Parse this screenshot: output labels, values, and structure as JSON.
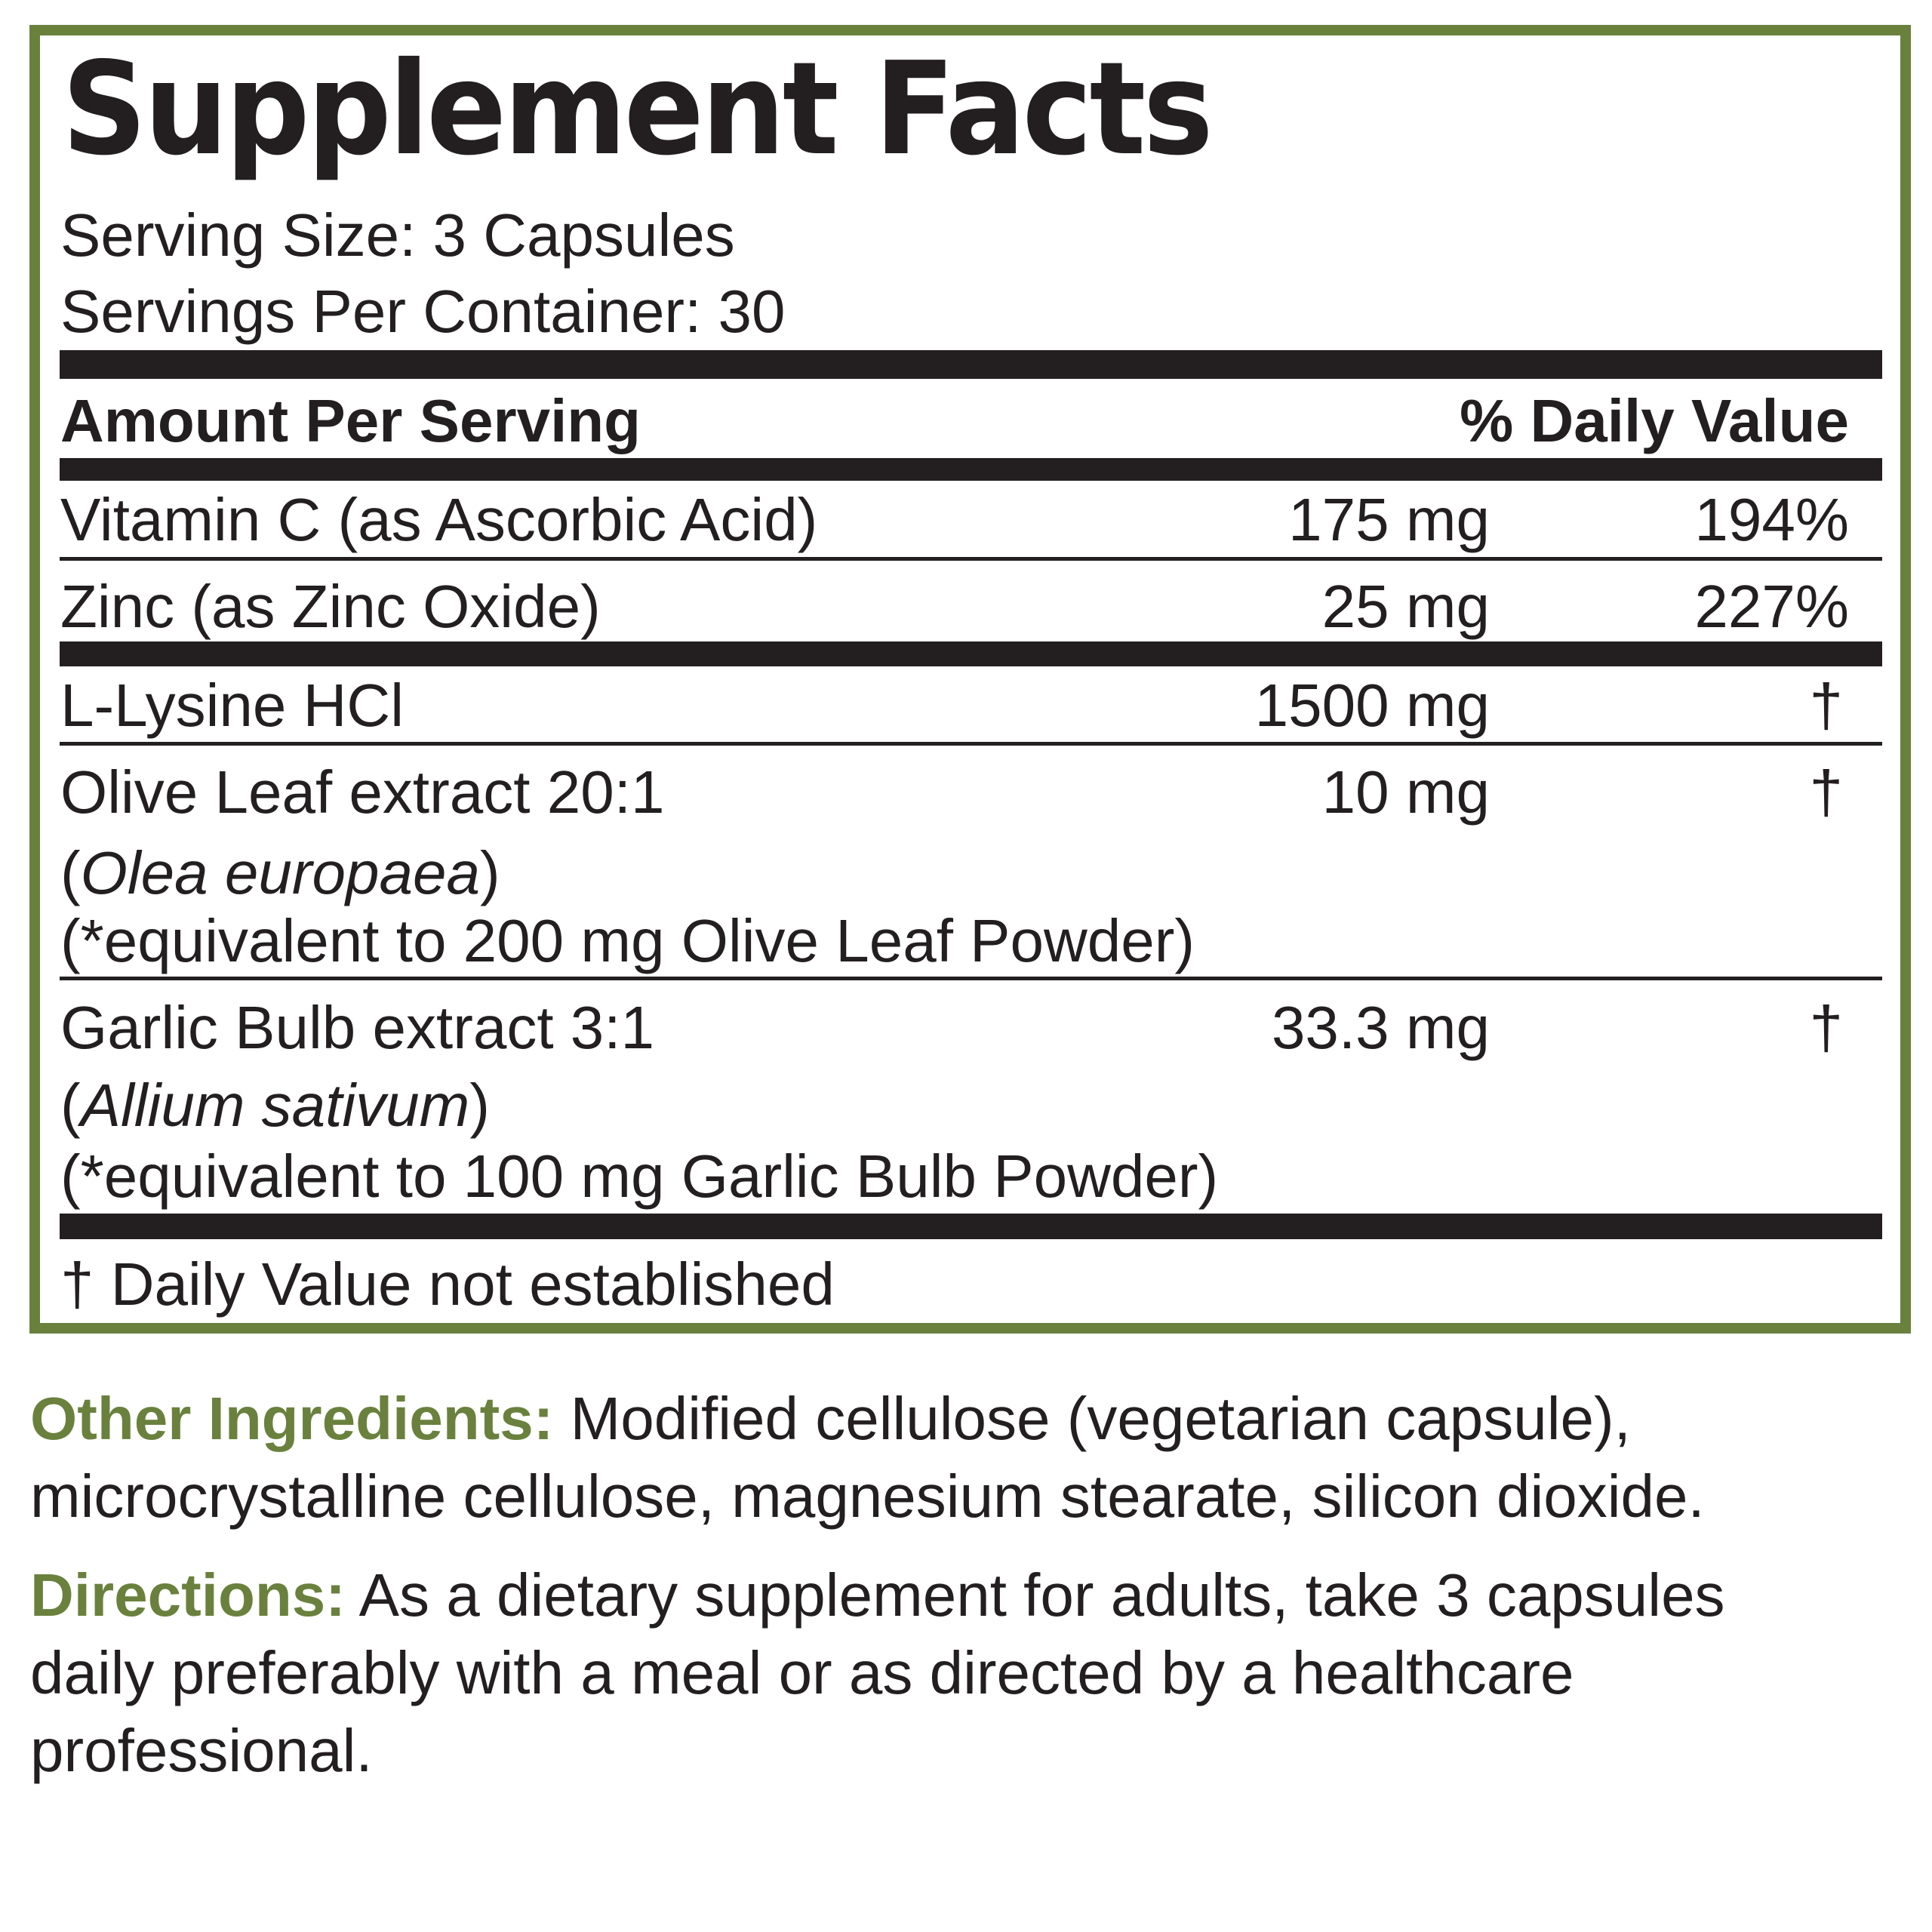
{
  "title": "Supplement Facts",
  "serving_size": "Serving Size: 3 Capsules",
  "servings_per_container": "Servings Per Container: 30",
  "header": {
    "amount": "Amount Per Serving",
    "dv": "% Daily Value"
  },
  "rows": [
    {
      "name": "Vitamin C (as Ascorbic Acid)",
      "amount": "175 mg",
      "dv": "194%"
    },
    {
      "name": "Zinc (as Zinc Oxide)",
      "amount": "25 mg",
      "dv": "227%"
    },
    {
      "name": "L-Lysine HCl",
      "amount": "1500 mg",
      "dv": "†"
    },
    {
      "name": "Olive Leaf extract 20:1",
      "latin": "Olea europaea",
      "equiv": "(*equivalent to 200 mg Olive Leaf Powder)",
      "amount": "10 mg",
      "dv": "†"
    },
    {
      "name": "Garlic Bulb extract 3:1",
      "latin": "Allium sativum",
      "equiv": "(*equivalent to 100 mg Garlic Bulb Powder)",
      "amount": "33.3 mg",
      "dv": "†"
    }
  ],
  "footnote": "† Daily Value not established",
  "other_ingredients": {
    "label": "Other Ingredients:",
    "text": " Modified cellulose (vegetarian capsule), microcrystalline cellulose, magnesium stearate, silicon dioxide."
  },
  "directions": {
    "label": "Directions:",
    "text": " As a dietary supplement for adults, take 3 capsules daily preferably with a meal or as directed by a healthcare professional."
  },
  "colors": {
    "accent": "#6a813e",
    "text": "#231f20"
  }
}
